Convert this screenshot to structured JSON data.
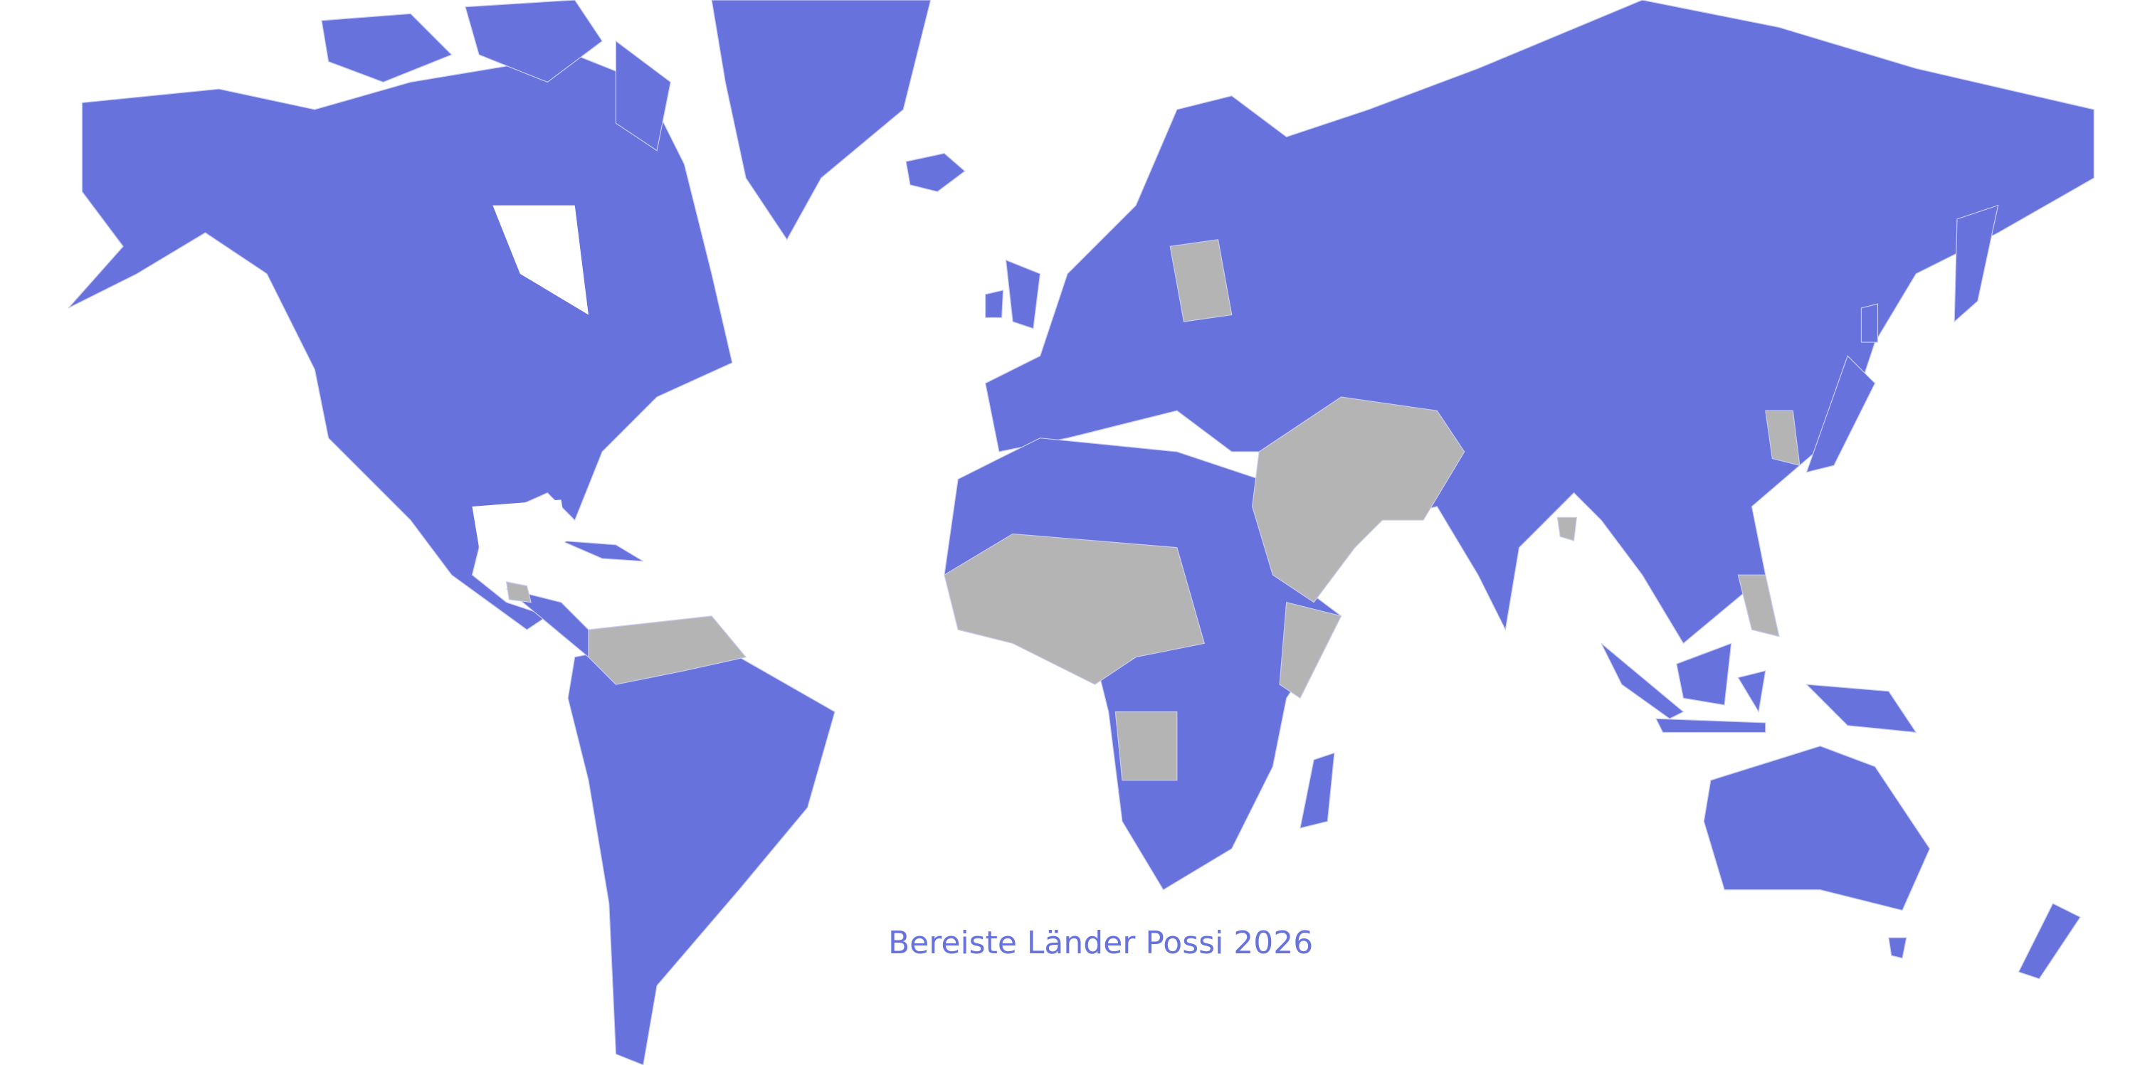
{
  "title": "Bereiste Länder Possi 2026",
  "colors": {
    "visited": "#6872dc",
    "not_visited": "#b4b4b4",
    "background": "#ffffff",
    "title": "#6872dc"
  }
}
